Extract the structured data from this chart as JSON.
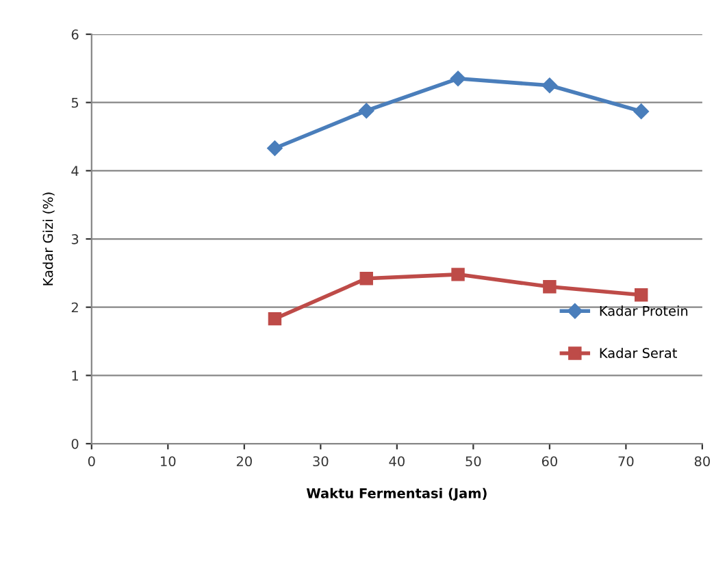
{
  "chart_data": {
    "type": "line",
    "xlabel": "Waktu Fermentasi (Jam)",
    "ylabel": "Kadar Gizi (%)",
    "x": [
      24,
      36,
      48,
      60,
      72
    ],
    "series": [
      {
        "name": "Kadar Protein",
        "color": "#4a7ebb",
        "marker": "diamond",
        "values": [
          4.33,
          4.88,
          5.35,
          5.25,
          4.87
        ]
      },
      {
        "name": "Kadar Serat",
        "color": "#be4b48",
        "marker": "square",
        "values": [
          1.83,
          2.42,
          2.48,
          2.3,
          2.18
        ]
      }
    ],
    "xlim": [
      0,
      80
    ],
    "xticks": [
      0,
      10,
      20,
      30,
      40,
      50,
      60,
      70,
      80
    ],
    "ylim": [
      0,
      6
    ],
    "yticks": [
      0,
      1,
      2,
      3,
      4,
      5,
      6
    ],
    "grid": "y",
    "legend": "right",
    "line_style": "solid"
  }
}
